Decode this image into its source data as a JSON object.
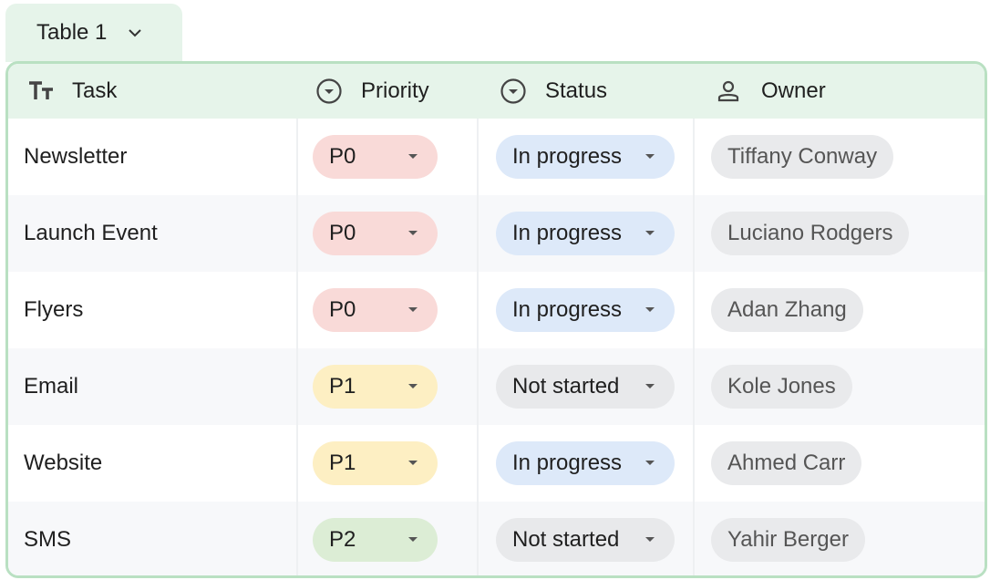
{
  "tab": {
    "title": "Table 1"
  },
  "table": {
    "columns": [
      "Task",
      "Priority",
      "Status",
      "Owner"
    ],
    "rows": [
      {
        "task": "Newsletter",
        "priority": "P0",
        "priority_color": "#f9dad8",
        "status": "In progress",
        "status_color": "#dde9f9",
        "owner": "Tiffany Conway"
      },
      {
        "task": "Launch Event",
        "priority": "P0",
        "priority_color": "#f9dad8",
        "status": "In progress",
        "status_color": "#dde9f9",
        "owner": "Luciano Rodgers"
      },
      {
        "task": "Flyers",
        "priority": "P0",
        "priority_color": "#f9dad8",
        "status": "In progress",
        "status_color": "#dde9f9",
        "owner": "Adan Zhang"
      },
      {
        "task": "Email",
        "priority": "P1",
        "priority_color": "#fdefc3",
        "status": "Not started",
        "status_color": "#e8e9eb",
        "owner": "Kole Jones"
      },
      {
        "task": "Website",
        "priority": "P1",
        "priority_color": "#fdefc3",
        "status": "In progress",
        "status_color": "#dde9f9",
        "owner": "Ahmed Carr"
      },
      {
        "task": "SMS",
        "priority": "P2",
        "priority_color": "#dcedd5",
        "status": "Not started",
        "status_color": "#e8e9eb",
        "owner": "Yahir Berger"
      }
    ]
  }
}
